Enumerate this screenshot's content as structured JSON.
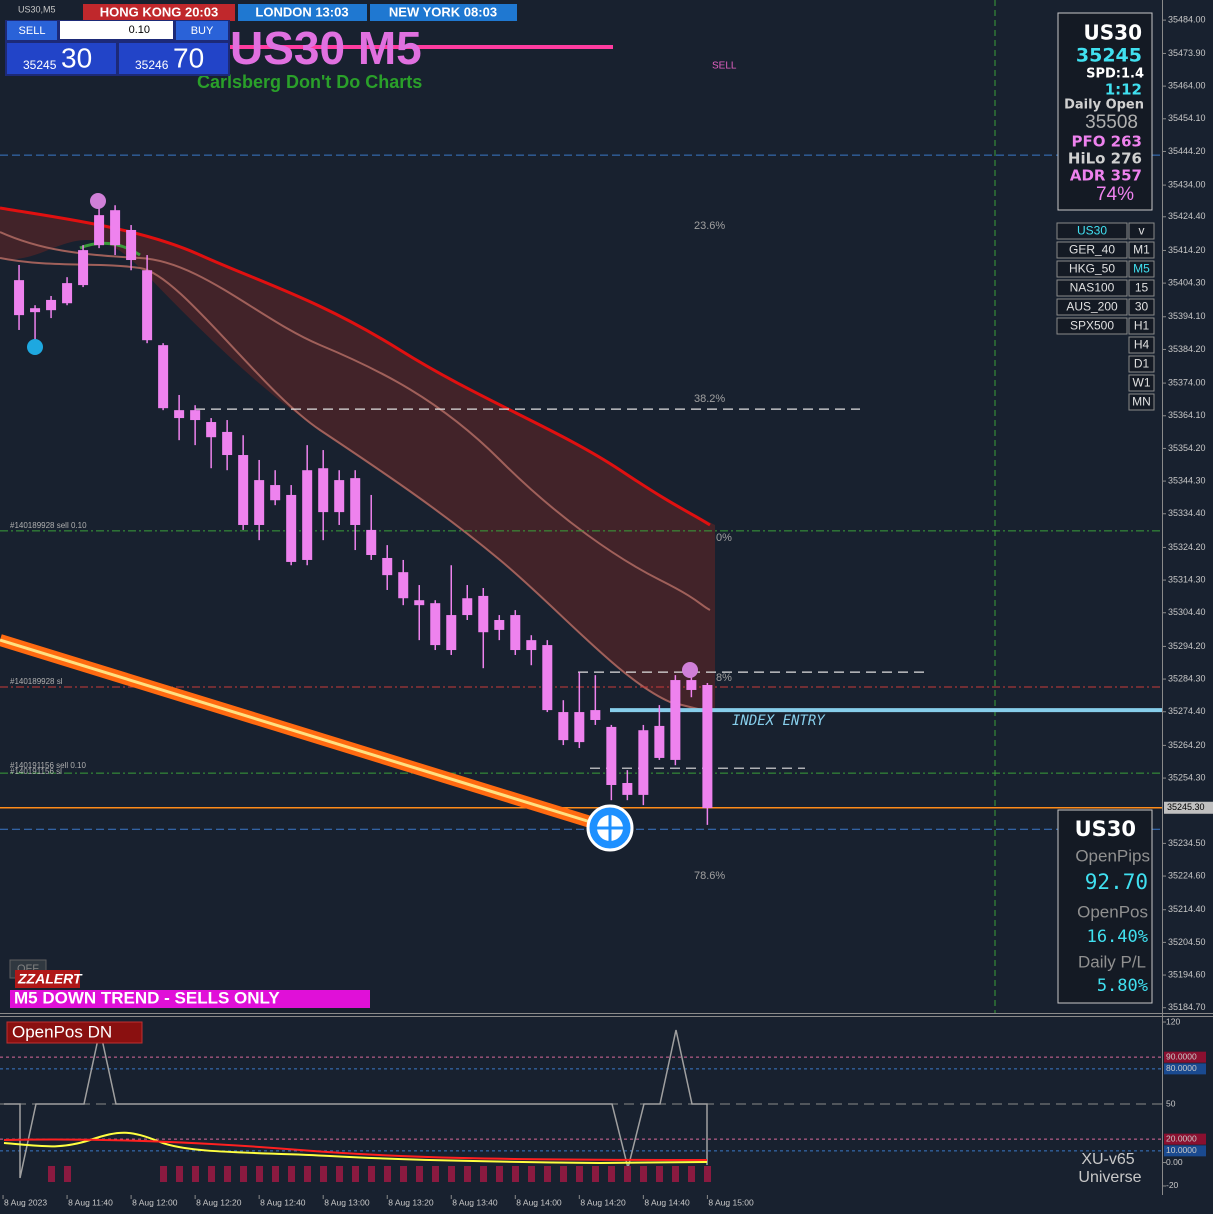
{
  "chart_data": {
    "type": "candlestick",
    "symbol_tab": "US30,M5",
    "title": "US30 M5",
    "subtitle": "Carlsberg Don't Do Charts",
    "color": "#ee82ee",
    "open": [
      35405.2,
      35396.7,
      35396.1,
      35398.2,
      35403.7,
      35415.8,
      35426.4,
      35420.4,
      35408.2,
      35385.5,
      35365.8,
      35362.8,
      35362.2,
      35359.2,
      35352.2,
      35344.6,
      35338.5,
      35340.1,
      35320.4,
      35348.2,
      35344.6,
      35345.2,
      35329.5,
      35321.0,
      35316.7,
      35308.2,
      35307.3,
      35293.1,
      35308.8,
      35309.5,
      35299.2,
      35303.7,
      35296.1,
      35294.6,
      35265.8,
      35274.3,
      35271.9,
      35269.8,
      35249.2,
      35249.2,
      35260.4,
      35259.8,
      35284.0,
      35282.5
    ],
    "high": [
      35409.8,
      35397.6,
      35400.4,
      35406.1,
      35415.8,
      35429.5,
      35427.9,
      35421.9,
      35412.8,
      35386.1,
      35370.4,
      35367.3,
      35363.4,
      35362.8,
      35358.2,
      35350.7,
      35347.6,
      35343.1,
      35355.2,
      35353.7,
      35347.6,
      35347.6,
      35340.1,
      35324.9,
      35320.4,
      35312.8,
      35308.2,
      35318.8,
      35312.8,
      35311.9,
      35303.7,
      35305.2,
      35297.6,
      35296.1,
      35277.9,
      35286.4,
      35285.5,
      35270.4,
      35256.7,
      35270.4,
      35276.4,
      35285.5,
      35287.0,
      35283.1
    ],
    "low": [
      35390.1,
      35385.5,
      35393.7,
      35397.6,
      35403.1,
      35414.9,
      35412.8,
      35408.2,
      35386.1,
      35365.8,
      35356.7,
      35355.2,
      35348.2,
      35347.6,
      35329.5,
      35326.4,
      35337.0,
      35318.8,
      35318.8,
      35326.4,
      35331.0,
      35323.4,
      35320.4,
      35311.3,
      35306.7,
      35296.1,
      35293.1,
      35291.6,
      35302.2,
      35287.6,
      35296.1,
      35291.6,
      35288.5,
      35274.3,
      35264.3,
      35263.4,
      35270.4,
      35247.6,
      35247.6,
      35246.1,
      35259.8,
      35258.2,
      35278.8,
      35240.1
    ],
    "close": [
      35394.6,
      35395.5,
      35399.2,
      35404.3,
      35414.3,
      35424.9,
      35415.8,
      35411.3,
      35387.0,
      35366.4,
      35363.4,
      35365.8,
      35357.6,
      35352.2,
      35331.0,
      35331.0,
      35343.1,
      35319.8,
      35347.6,
      35334.9,
      35334.9,
      35331.0,
      35321.9,
      35315.8,
      35308.8,
      35306.7,
      35294.6,
      35303.7,
      35303.7,
      35298.5,
      35302.2,
      35293.1,
      35293.1,
      35274.9,
      35274.3,
      35265.2,
      35274.9,
      35252.2,
      35252.8,
      35268.8,
      35270.1,
      35284.0,
      35281.0,
      35245.2
    ],
    "ylim": [
      35183.1,
      35490.1
    ],
    "yticks": [
      {
        "value": 35484.0,
        "label": "35484.00"
      },
      {
        "value": 35473.9,
        "label": "35473.90"
      },
      {
        "value": 35464.0,
        "label": "35464.00"
      },
      {
        "value": 35454.1,
        "label": "35454.10"
      },
      {
        "value": 35444.2,
        "label": "35444.20"
      },
      {
        "value": 35434.0,
        "label": "35434.00"
      },
      {
        "value": 35424.4,
        "label": "35424.40"
      },
      {
        "value": 35414.2,
        "label": "35414.20"
      },
      {
        "value": 35404.3,
        "label": "35404.30"
      },
      {
        "value": 35394.1,
        "label": "35394.10"
      },
      {
        "value": 35384.2,
        "label": "35384.20"
      },
      {
        "value": 35374.0,
        "label": "35374.00"
      },
      {
        "value": 35364.1,
        "label": "35364.10"
      },
      {
        "value": 35354.2,
        "label": "35354.20"
      },
      {
        "value": 35344.3,
        "label": "35344.30"
      },
      {
        "value": 35334.4,
        "label": "35334.40"
      },
      {
        "value": 35324.2,
        "label": "35324.20"
      },
      {
        "value": 35314.3,
        "label": "35314.30"
      },
      {
        "value": 35304.4,
        "label": "35304.40"
      },
      {
        "value": 35294.2,
        "label": "35294.20"
      },
      {
        "value": 35284.3,
        "label": "35284.30"
      },
      {
        "value": 35274.4,
        "label": "35274.40"
      },
      {
        "value": 35264.2,
        "label": "35264.20"
      },
      {
        "value": 35254.3,
        "label": "35254.30"
      },
      {
        "value": 35234.5,
        "label": "35234.50"
      },
      {
        "value": 35224.6,
        "label": "35224.60"
      },
      {
        "value": 35214.4,
        "label": "35214.40"
      },
      {
        "value": 35204.5,
        "label": "35204.50"
      },
      {
        "value": 35194.6,
        "label": "35194.60"
      },
      {
        "value": 35184.7,
        "label": "35184.70"
      }
    ],
    "xlim": [
      -1.19,
      71.4
    ],
    "xticks": [
      {
        "value": -1,
        "label": "8 Aug 2023"
      },
      {
        "value": 3,
        "label": "8 Aug 11:40"
      },
      {
        "value": 7,
        "label": "8 Aug 12:00"
      },
      {
        "value": 11,
        "label": "8 Aug 12:20"
      },
      {
        "value": 15,
        "label": "8 Aug 12:40"
      },
      {
        "value": 19,
        "label": "8 Aug 13:00"
      },
      {
        "value": 23,
        "label": "8 Aug 13:20"
      },
      {
        "value": 27,
        "label": "8 Aug 13:40"
      },
      {
        "value": 31,
        "label": "8 Aug 14:00"
      },
      {
        "value": 35,
        "label": "8 Aug 14:20"
      },
      {
        "value": 39,
        "label": "8 Aug 14:40"
      },
      {
        "value": 43,
        "label": "8 Aug 15:00"
      }
    ],
    "last": {
      "value": 35245.3,
      "label": "35245.30",
      "color": "#ff8c1a"
    },
    "levels": [
      {
        "value": 35443.1,
        "color": "#3a78c8"
      },
      {
        "value": 35238.8,
        "color": "#3a78c8"
      },
      {
        "value": 35329.2,
        "color": "#3aa03a"
      },
      {
        "value": 35255.8,
        "color": "#3aa03a"
      },
      {
        "value": 35281.9,
        "color": "#c83a3a"
      },
      {
        "value": 35366.1,
        "color": "#e0e0e0"
      },
      {
        "value": 35286.4,
        "color": "#e0e0e0"
      },
      {
        "value": 35257.3,
        "color": "#e0e0e0"
      },
      {
        "value": 35274.9,
        "color": "#87ceeb"
      }
    ]
  },
  "indicator": {
    "title": "OpenPos DN",
    "ylim": [
      -27.7,
      126
    ],
    "footer": [
      "XU-v65",
      "Universe"
    ],
    "yticks": [
      120,
      {
        "value": 90,
        "label": "90.0000"
      },
      {
        "value": 80,
        "label": "80.0000"
      },
      50,
      {
        "value": 20,
        "label": "20.0000"
      },
      {
        "value": 10,
        "label": "10.0000"
      },
      {
        "value": 0,
        "label": "0.00"
      },
      -20
    ]
  },
  "header": {
    "sessions": [
      "HONG KONG  20:03",
      "LONDON  13:03",
      "NEW YORK  08:03"
    ]
  },
  "trade_panel": {
    "sell": "SELL",
    "lot": "0.10",
    "buy": "BUY",
    "bid_big": "35245",
    "bid_small": "30",
    "ask_big": "35246",
    "ask_small": "70"
  },
  "info_box": [
    "US30",
    "35245",
    "SPD:1.4",
    "1:12",
    "Daily Open",
    "35508",
    "PFO 263",
    "HiLo 276",
    "ADR 357",
    "74%"
  ],
  "symbols": [
    "US30",
    "GER_40",
    "HKG_50",
    "NAS100",
    "AUS_200",
    "SPX500"
  ],
  "timeframes": [
    "v",
    "M1",
    "M5",
    "15",
    "30",
    "H1",
    "H4",
    "D1",
    "W1",
    "MN"
  ],
  "open_box": [
    "US30",
    "OpenPips",
    "92.70",
    "OpenPos",
    "16.40%",
    "Daily P/L",
    "5.80%"
  ],
  "alerts": {
    "off": "OFF",
    "zz": "ZZALERT",
    "trend": "M5  DOWN TREND - SELLS ONLY"
  },
  "annotations": {
    "sell": "SELL",
    "fib": [
      "23.6%",
      "38.2%",
      "0%",
      "8%",
      "78.6%"
    ],
    "index_entry": "INDEX ENTRY",
    "orders": [
      "#140189928 sell 0.10",
      "#140189928 sl",
      "#140191156 sell 0.10",
      "#140191156 sl"
    ]
  }
}
